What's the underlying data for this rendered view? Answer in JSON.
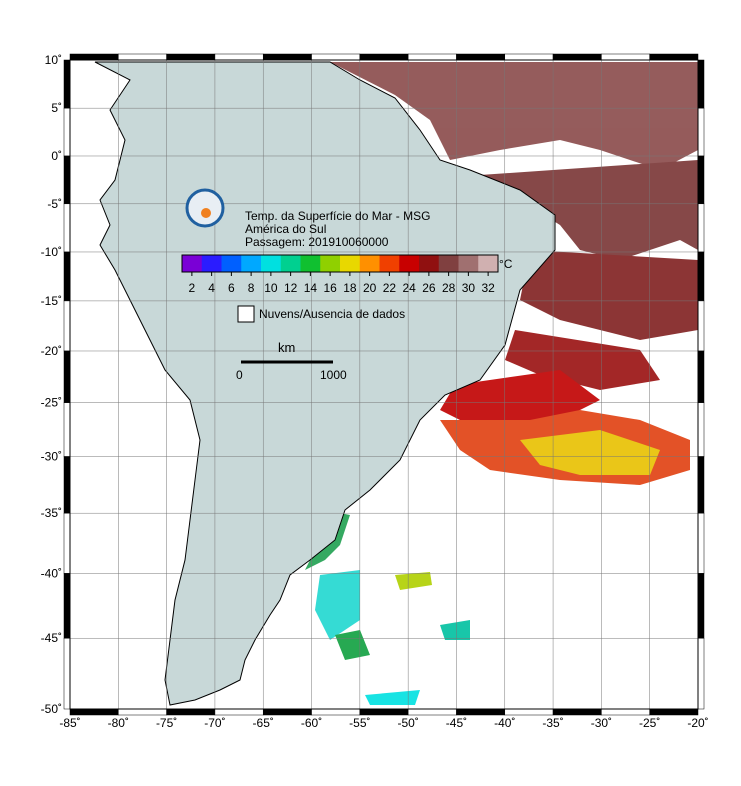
{
  "map": {
    "title": "Temp. da Superfície do Mar - MSG",
    "region": "América do Sul",
    "pass": "Passagem: 201910060000",
    "colorbar": {
      "unit": "°C",
      "clim": [
        1,
        33
      ],
      "ticks": [
        2,
        4,
        6,
        8,
        10,
        12,
        14,
        16,
        18,
        20,
        22,
        24,
        26,
        28,
        30,
        32
      ],
      "colors": [
        "#7a00d6",
        "#2a1cff",
        "#0060ff",
        "#00a8ff",
        "#00e0e0",
        "#00d090",
        "#10c030",
        "#90d000",
        "#e8d800",
        "#ff9000",
        "#f04000",
        "#c80000",
        "#901010",
        "#804040",
        "#a07070",
        "#d0b0b0"
      ]
    },
    "legend": "Nuvens/Ausencia de dados",
    "scale": {
      "unit": "km",
      "start": "0",
      "end": "1000"
    },
    "xlim": [
      -85,
      -20
    ],
    "ylim": [
      -50,
      10
    ],
    "xticks": [
      {
        "value": -85,
        "label": "-85˚"
      },
      {
        "value": -80,
        "label": "-80˚"
      },
      {
        "value": -75,
        "label": "-75˚"
      },
      {
        "value": -70,
        "label": "-70˚"
      },
      {
        "value": -65,
        "label": "-65˚"
      },
      {
        "value": -60,
        "label": "-60˚"
      },
      {
        "value": -55,
        "label": "-55˚"
      },
      {
        "value": -50,
        "label": "-50˚"
      },
      {
        "value": -45,
        "label": "-45˚"
      },
      {
        "value": -40,
        "label": "-40˚"
      },
      {
        "value": -35,
        "label": "-35˚"
      },
      {
        "value": -30,
        "label": "-30˚"
      },
      {
        "value": -25,
        "label": "-25˚"
      },
      {
        "value": -20,
        "label": "-20˚"
      }
    ],
    "yticks": [
      {
        "value": 10,
        "label": "10˚"
      },
      {
        "value": 5,
        "label": "5˚"
      },
      {
        "value": 0,
        "label": "0˚"
      },
      {
        "value": -5,
        "label": "-5˚"
      },
      {
        "value": -10,
        "label": "-10˚"
      },
      {
        "value": -15,
        "label": "-15˚"
      },
      {
        "value": -20,
        "label": "-20˚"
      },
      {
        "value": -25,
        "label": "-25˚"
      },
      {
        "value": -30,
        "label": "-30˚"
      },
      {
        "value": -35,
        "label": "-35˚"
      },
      {
        "value": -40,
        "label": "-40˚"
      },
      {
        "value": -45,
        "label": "-45˚"
      },
      {
        "value": -50,
        "label": "-50˚"
      }
    ],
    "projection": "mercator"
  }
}
